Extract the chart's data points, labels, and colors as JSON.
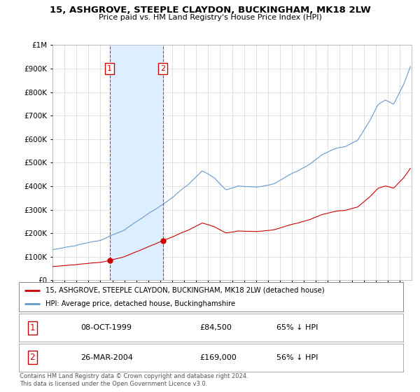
{
  "title": "15, ASHGROVE, STEEPLE CLAYDON, BUCKINGHAM, MK18 2LW",
  "subtitle": "Price paid vs. HM Land Registry's House Price Index (HPI)",
  "legend_line1": "15, ASHGROVE, STEEPLE CLAYDON, BUCKINGHAM, MK18 2LW (detached house)",
  "legend_line2": "HPI: Average price, detached house, Buckinghamshire",
  "footer": "Contains HM Land Registry data © Crown copyright and database right 2024.\nThis data is licensed under the Open Government Licence v3.0.",
  "sale1_date": "08-OCT-1999",
  "sale1_price": "£84,500",
  "sale1_hpi": "65% ↓ HPI",
  "sale2_date": "26-MAR-2004",
  "sale2_price": "£169,000",
  "sale2_hpi": "56% ↓ HPI",
  "sale1_year": 1999.77,
  "sale1_value": 84500,
  "sale2_year": 2004.23,
  "sale2_value": 169000,
  "red_color": "#cc0000",
  "blue_color": "#6699cc",
  "shade_color": "#ddeeff",
  "grid_color": "#cccccc",
  "bg_color": "#ffffff",
  "ylim": [
    0,
    1000000
  ],
  "xlim_start": 1995.0,
  "xlim_end": 2025.0
}
